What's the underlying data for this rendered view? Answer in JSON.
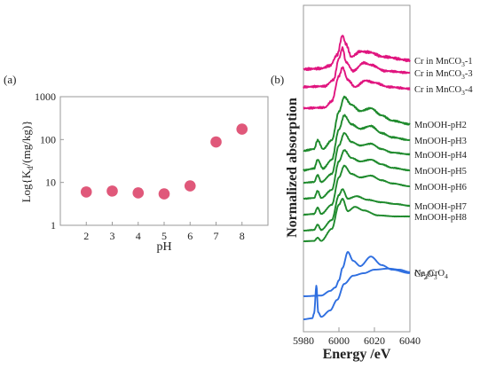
{
  "panel_labels": {
    "a": "(a)",
    "b": "(b)"
  },
  "colors": {
    "scatter_marker": "#e0587a",
    "cr_mnco3": "#e0157f",
    "mnooh": "#1e8a2c",
    "reference": "#2f6fe0",
    "axis": "#9a9a9a"
  },
  "chart_data": [
    {
      "type": "scatter",
      "panel": "(a)",
      "title": "",
      "xlabel": "pH",
      "ylabel_parts": {
        "prefix": "Log{K",
        "sub": "d",
        "suffix": "/(mg/kg)}"
      },
      "x_ticks": [
        "2",
        "3",
        "4",
        "5",
        "6",
        "7",
        "8"
      ],
      "y_ticks": [
        "1",
        "10",
        "100",
        "1000"
      ],
      "yscale": "log",
      "xlim": [
        1,
        9
      ],
      "ylim": [
        1,
        1000
      ],
      "grid": false,
      "points": [
        {
          "x": 2,
          "y": 6.0
        },
        {
          "x": 3,
          "y": 6.3
        },
        {
          "x": 4,
          "y": 5.7
        },
        {
          "x": 5,
          "y": 5.4
        },
        {
          "x": 6,
          "y": 8.3
        },
        {
          "x": 7,
          "y": 88
        },
        {
          "x": 8,
          "y": 175
        }
      ]
    },
    {
      "type": "line",
      "panel": "(b)",
      "title": "",
      "xlabel": "Energy /eV",
      "ylabel": "Normalized absorption",
      "x_ticks": [
        "5980",
        "6000",
        "6020",
        "6040"
      ],
      "xlim": [
        5980,
        6040
      ],
      "yaxis_values_shown": false,
      "grid": false,
      "series": [
        {
          "label_main": "Cr in MnCO",
          "label_sub": "3",
          "label_tail": "-1",
          "group": "cr",
          "noise": 0.6,
          "pts": [
            [
              5980,
              7.6
            ],
            [
              5990,
              7.62
            ],
            [
              5995,
              7.7
            ],
            [
              5999,
              8.0
            ],
            [
              6002,
              8.55
            ],
            [
              6004,
              8.3
            ],
            [
              6007,
              7.95
            ],
            [
              6012,
              8.1
            ],
            [
              6017,
              8.08
            ],
            [
              6025,
              7.95
            ],
            [
              6040,
              7.85
            ]
          ]
        },
        {
          "label_main": "Cr in MnCO",
          "label_sub": "3",
          "label_tail": "-3",
          "group": "cr",
          "noise": 0.45,
          "pts": [
            [
              5980,
              7.1
            ],
            [
              5992,
              7.12
            ],
            [
              5997,
              7.3
            ],
            [
              6000,
              7.9
            ],
            [
              6002,
              8.2
            ],
            [
              6004,
              7.8
            ],
            [
              6008,
              7.55
            ],
            [
              6014,
              7.78
            ],
            [
              6018,
              7.72
            ],
            [
              6026,
              7.55
            ],
            [
              6040,
              7.5
            ]
          ]
        },
        {
          "label_main": "Cr in MnCO",
          "label_sub": "3",
          "label_tail": "-4",
          "group": "cr",
          "noise": 0.45,
          "pts": [
            [
              5980,
              6.5
            ],
            [
              5992,
              6.52
            ],
            [
              5996,
              6.7
            ],
            [
              6000,
              7.4
            ],
            [
              6002,
              7.65
            ],
            [
              6005,
              7.3
            ],
            [
              6009,
              7.1
            ],
            [
              6015,
              7.28
            ],
            [
              6020,
              7.22
            ],
            [
              6028,
              7.1
            ],
            [
              6040,
              7.05
            ]
          ]
        },
        {
          "label_main": "MnOOH-pH2",
          "label_sub": "",
          "label_tail": "",
          "group": "mn",
          "noise": 0.35,
          "pts": [
            [
              5980,
              5.3
            ],
            [
              5986,
              5.35
            ],
            [
              5988,
              5.6
            ],
            [
              5991,
              5.35
            ],
            [
              5996,
              5.6
            ],
            [
              6000,
              6.4
            ],
            [
              6003,
              6.82
            ],
            [
              6007,
              6.6
            ],
            [
              6012,
              6.42
            ],
            [
              6018,
              6.5
            ],
            [
              6024,
              6.3
            ],
            [
              6030,
              6.15
            ],
            [
              6040,
              6.05
            ]
          ]
        },
        {
          "label_main": "MnOOH-pH3",
          "label_sub": "",
          "label_tail": "",
          "group": "mn",
          "noise": 0.3,
          "pts": [
            [
              5980,
              4.75
            ],
            [
              5986,
              4.8
            ],
            [
              5988,
              5.05
            ],
            [
              5991,
              4.8
            ],
            [
              5996,
              5.05
            ],
            [
              6000,
              5.9
            ],
            [
              6003,
              6.3
            ],
            [
              6007,
              6.05
            ],
            [
              6012,
              5.92
            ],
            [
              6018,
              6.0
            ],
            [
              6024,
              5.8
            ],
            [
              6030,
              5.68
            ],
            [
              6040,
              5.6
            ]
          ]
        },
        {
          "label_main": "MnOOH-pH4",
          "label_sub": "",
          "label_tail": "",
          "group": "mn",
          "noise": 0.2,
          "pts": [
            [
              5980,
              4.4
            ],
            [
              5986,
              4.42
            ],
            [
              5988,
              4.62
            ],
            [
              5990,
              4.42
            ],
            [
              5996,
              4.65
            ],
            [
              6000,
              5.45
            ],
            [
              6003,
              5.8
            ],
            [
              6007,
              5.55
            ],
            [
              6012,
              5.45
            ],
            [
              6018,
              5.5
            ],
            [
              6024,
              5.35
            ],
            [
              6030,
              5.25
            ],
            [
              6040,
              5.2
            ]
          ]
        },
        {
          "label_main": "MnOOH-pH5",
          "label_sub": "",
          "label_tail": "",
          "group": "mn",
          "noise": 0.2,
          "pts": [
            [
              5980,
              3.95
            ],
            [
              5986,
              3.97
            ],
            [
              5988,
              4.17
            ],
            [
              5990,
              3.97
            ],
            [
              5996,
              4.2
            ],
            [
              6000,
              5.0
            ],
            [
              6003,
              5.32
            ],
            [
              6007,
              5.1
            ],
            [
              6012,
              5.0
            ],
            [
              6018,
              5.05
            ],
            [
              6024,
              4.92
            ],
            [
              6030,
              4.82
            ],
            [
              6040,
              4.75
            ]
          ]
        },
        {
          "label_main": "MnOOH-pH6",
          "label_sub": "",
          "label_tail": "",
          "group": "mn",
          "noise": 0.15,
          "pts": [
            [
              5980,
              3.5
            ],
            [
              5986,
              3.52
            ],
            [
              5988,
              3.7
            ],
            [
              5990,
              3.52
            ],
            [
              5996,
              3.78
            ],
            [
              6000,
              4.55
            ],
            [
              6003,
              4.88
            ],
            [
              6007,
              4.65
            ],
            [
              6012,
              4.55
            ],
            [
              6018,
              4.6
            ],
            [
              6024,
              4.47
            ],
            [
              6030,
              4.38
            ],
            [
              6040,
              4.3
            ]
          ]
        },
        {
          "label_main": "MnOOH-pH7",
          "label_sub": "",
          "label_tail": "",
          "group": "mn",
          "noise": 0.15,
          "pts": [
            [
              5980,
              3.05
            ],
            [
              5986,
              3.07
            ],
            [
              5988,
              3.22
            ],
            [
              5990,
              3.07
            ],
            [
              5996,
              3.35
            ],
            [
              6000,
              4.05
            ],
            [
              6002,
              4.22
            ],
            [
              6005,
              3.95
            ],
            [
              6010,
              4.02
            ],
            [
              6016,
              3.92
            ],
            [
              6024,
              3.85
            ],
            [
              6032,
              3.8
            ],
            [
              6040,
              3.75
            ]
          ]
        },
        {
          "label_main": "MnOOH-pH8",
          "label_sub": "",
          "label_tail": "",
          "group": "mn",
          "noise": 0.1,
          "pts": [
            [
              5980,
              2.75
            ],
            [
              5986,
              2.76
            ],
            [
              5988,
              2.85
            ],
            [
              5990,
              2.76
            ],
            [
              5996,
              3.1
            ],
            [
              6000,
              3.78
            ],
            [
              6002,
              3.95
            ],
            [
              6005,
              3.6
            ],
            [
              6009,
              3.72
            ],
            [
              6014,
              3.62
            ],
            [
              6022,
              3.48
            ],
            [
              6032,
              3.45
            ],
            [
              6040,
              3.45
            ]
          ]
        },
        {
          "label_main": "Cr",
          "label_sub": "2",
          "label_tail": "O",
          "label_sub2": "3",
          "group": "ref",
          "noise": 0.05,
          "pts": [
            [
              5980,
              1.2
            ],
            [
              5990,
              1.22
            ],
            [
              5995,
              1.35
            ],
            [
              5998,
              1.45
            ],
            [
              6000,
              1.65
            ],
            [
              6002,
              2.0
            ],
            [
              6005,
              2.45
            ],
            [
              6008,
              2.2
            ],
            [
              6012,
              2.05
            ],
            [
              6018,
              2.32
            ],
            [
              6024,
              2.08
            ],
            [
              6030,
              1.95
            ],
            [
              6040,
              1.85
            ]
          ]
        },
        {
          "label_main": "Na",
          "label_sub": "2",
          "label_tail": "CrO",
          "label_sub2": "4",
          "group": "ref",
          "noise": 0.0,
          "pts": [
            [
              5980,
              0.55
            ],
            [
              5985,
              0.58
            ],
            [
              5986,
              0.72
            ],
            [
              5987.3,
              1.5
            ],
            [
              5988.3,
              0.75
            ],
            [
              5990,
              0.62
            ],
            [
              5995,
              0.8
            ],
            [
              5999,
              1.1
            ],
            [
              6003,
              1.55
            ],
            [
              6008,
              1.78
            ],
            [
              6014,
              1.85
            ],
            [
              6020,
              1.95
            ],
            [
              6028,
              1.98
            ],
            [
              6034,
              1.95
            ],
            [
              6040,
              1.88
            ]
          ]
        }
      ]
    }
  ]
}
